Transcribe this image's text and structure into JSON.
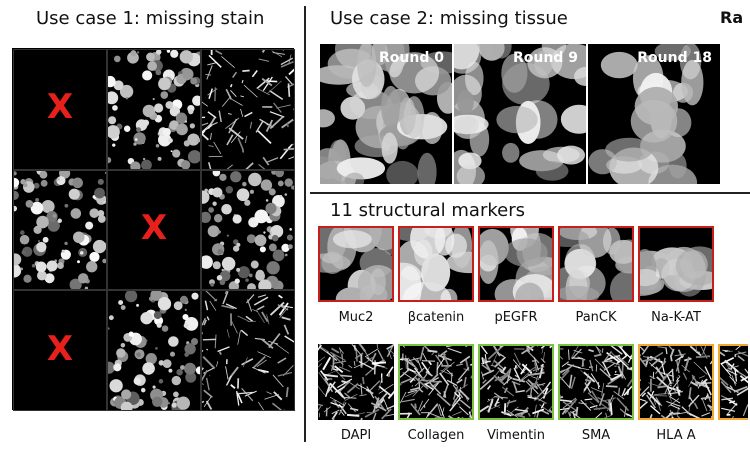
{
  "left_panel": {
    "title": "Use case 1: missing stain",
    "missing_marker": "X"
  },
  "right_panel": {
    "title": "Use case 2: missing tissue",
    "cut_off_title": "Ra",
    "rounds": [
      "Round 0",
      "Round 9",
      "Round 18"
    ]
  },
  "markers_section": {
    "title": "11 structural markers",
    "row1": [
      "Muc2",
      "βcatenin",
      "pEGFR",
      "PanCK",
      "Na-K-AT"
    ],
    "row2": [
      "DAPI",
      "Collagen",
      "Vimentin",
      "SMA",
      "HLA A"
    ]
  },
  "colors": {
    "red_frame": "#c81e1e",
    "green_frame": "#7cc242",
    "orange_frame": "#f0a830",
    "x_color": "#e8201c"
  }
}
